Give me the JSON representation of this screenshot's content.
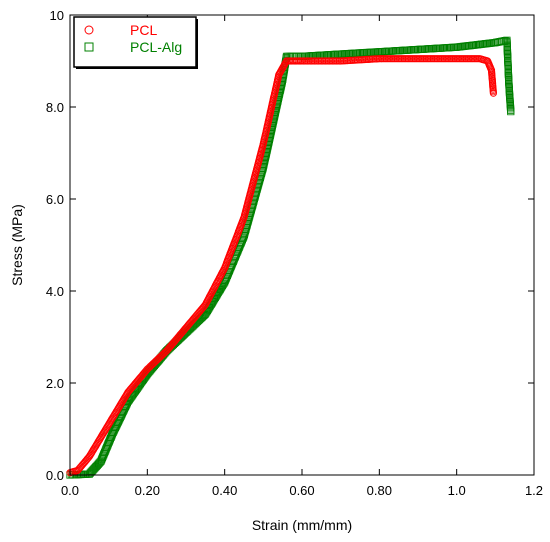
{
  "chart_data": {
    "type": "scatter",
    "xlabel": "Strain (mm/mm)",
    "ylabel": "Stress (MPa)",
    "xlim": [
      0,
      1.2
    ],
    "ylim": [
      0,
      10
    ],
    "x_ticks": [
      {
        "value": 0,
        "label": "0.0"
      },
      {
        "value": 0.2,
        "label": "0.20"
      },
      {
        "value": 0.4,
        "label": "0.40"
      },
      {
        "value": 0.6,
        "label": "0.60"
      },
      {
        "value": 0.8,
        "label": "0.80"
      },
      {
        "value": 1.0,
        "label": "1.0"
      },
      {
        "value": 1.2,
        "label": "1.2"
      }
    ],
    "y_ticks": [
      {
        "value": 0,
        "label": "0.0"
      },
      {
        "value": 2,
        "label": "2.0"
      },
      {
        "value": 4,
        "label": "4.0"
      },
      {
        "value": 6,
        "label": "6.0"
      },
      {
        "value": 8,
        "label": "8.0"
      },
      {
        "value": 10,
        "label": "10"
      }
    ],
    "grid": false,
    "legend_position": "top-left",
    "series": [
      {
        "name": "PCL",
        "marker": "circle",
        "color": "#ff0000",
        "points": [
          [
            0,
            0.05
          ],
          [
            0.02,
            0.1
          ],
          [
            0.05,
            0.4
          ],
          [
            0.1,
            1.1
          ],
          [
            0.15,
            1.8
          ],
          [
            0.2,
            2.3
          ],
          [
            0.25,
            2.7
          ],
          [
            0.3,
            3.2
          ],
          [
            0.35,
            3.7
          ],
          [
            0.4,
            4.5
          ],
          [
            0.45,
            5.6
          ],
          [
            0.5,
            7.2
          ],
          [
            0.54,
            8.7
          ],
          [
            0.56,
            9.0
          ],
          [
            0.6,
            9.0
          ],
          [
            0.7,
            9.0
          ],
          [
            0.8,
            9.05
          ],
          [
            0.9,
            9.05
          ],
          [
            1.0,
            9.05
          ],
          [
            1.06,
            9.05
          ],
          [
            1.08,
            9.0
          ],
          [
            1.09,
            8.8
          ],
          [
            1.095,
            8.3
          ]
        ]
      },
      {
        "name": "PCL-Alg",
        "marker": "square",
        "color": "#008000",
        "points": [
          [
            0,
            0
          ],
          [
            0.05,
            0.02
          ],
          [
            0.08,
            0.3
          ],
          [
            0.11,
            0.9
          ],
          [
            0.15,
            1.6
          ],
          [
            0.2,
            2.2
          ],
          [
            0.25,
            2.7
          ],
          [
            0.3,
            3.1
          ],
          [
            0.35,
            3.5
          ],
          [
            0.4,
            4.2
          ],
          [
            0.45,
            5.2
          ],
          [
            0.5,
            6.7
          ],
          [
            0.55,
            8.6
          ],
          [
            0.56,
            9.1
          ],
          [
            0.6,
            9.1
          ],
          [
            0.7,
            9.15
          ],
          [
            0.8,
            9.2
          ],
          [
            0.9,
            9.25
          ],
          [
            1.0,
            9.3
          ],
          [
            1.1,
            9.4
          ],
          [
            1.13,
            9.45
          ],
          [
            1.135,
            8.5
          ],
          [
            1.14,
            7.9
          ]
        ]
      }
    ]
  }
}
